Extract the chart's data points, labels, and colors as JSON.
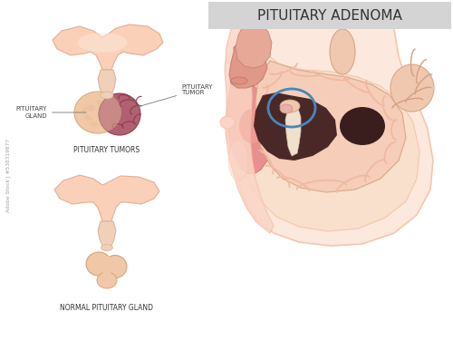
{
  "title": "PITUITARY ADENOMA",
  "title_bg": "#d4d4d4",
  "title_color": "#333333",
  "title_fontsize": 11,
  "bg_color": "#ffffff",
  "label_pituitary_gland": "PITUITARY\nGLAND",
  "label_pituitary_tumor": "PITUITARY\nTUMOR",
  "label_tumors": "PITUITARY TUMORS",
  "label_normal": "NORMAL PITUITARY GLAND",
  "label_fontsize": 5.0,
  "skin_outer": "#f5c5b0",
  "skin_mid": "#fad5c5",
  "skin_light": "#fce8dc",
  "brain_gyri": "#f0b8a0",
  "brain_fill": "#f5cdb8",
  "skull_inner": "#e8c0a8",
  "dark_sinus": "#4a2828",
  "dark_brain_stem": "#3a2020",
  "pituitary_gland_color": "#f0c8a8",
  "tumor_color": "#b06070",
  "tumor_dark": "#8a4050",
  "circle_color": "#4488bb",
  "nasal_color": "#e89090",
  "nasal_dark": "#d07878",
  "mouth_color": "#e09888",
  "throat_color": "#e8a898",
  "watermark_text": "Adobe Stock | #538319877",
  "stalk_color": "#f0d0b8",
  "hypothalamus_color": "#fad0b8"
}
